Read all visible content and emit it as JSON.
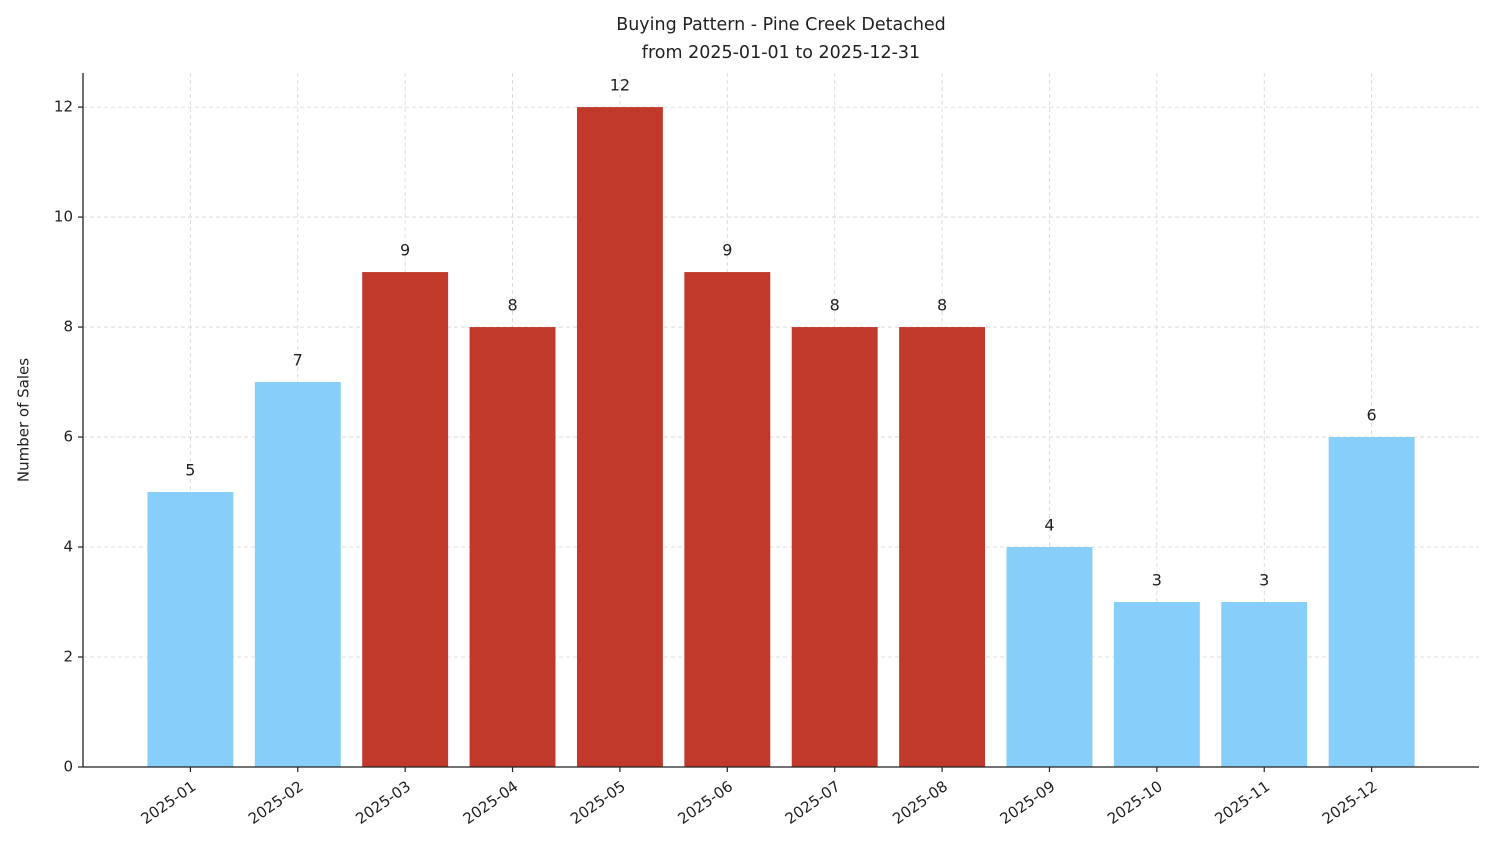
{
  "chart_data": {
    "type": "bar",
    "title": "Buying Pattern - Pine Creek Detached",
    "subtitle": "from 2025-01-01 to 2025-12-31",
    "y_label": "Number of Sales",
    "categories": [
      "2025-01",
      "2025-02",
      "2025-03",
      "2025-04",
      "2025-05",
      "2025-06",
      "2025-07",
      "2025-08",
      "2025-09",
      "2025-10",
      "2025-11",
      "2025-12"
    ],
    "values": [
      5,
      7,
      9,
      8,
      12,
      9,
      8,
      8,
      4,
      3,
      3,
      6
    ],
    "colors": [
      "#87cefa",
      "#87cefa",
      "#c0392b",
      "#c0392b",
      "#c0392b",
      "#c0392b",
      "#c0392b",
      "#c0392b",
      "#87cefa",
      "#87cefa",
      "#87cefa",
      "#87cefa"
    ],
    "ylim": [
      0,
      12.62
    ],
    "yticks": [
      0,
      2,
      4,
      6,
      8,
      10,
      12
    ],
    "grid": true
  }
}
